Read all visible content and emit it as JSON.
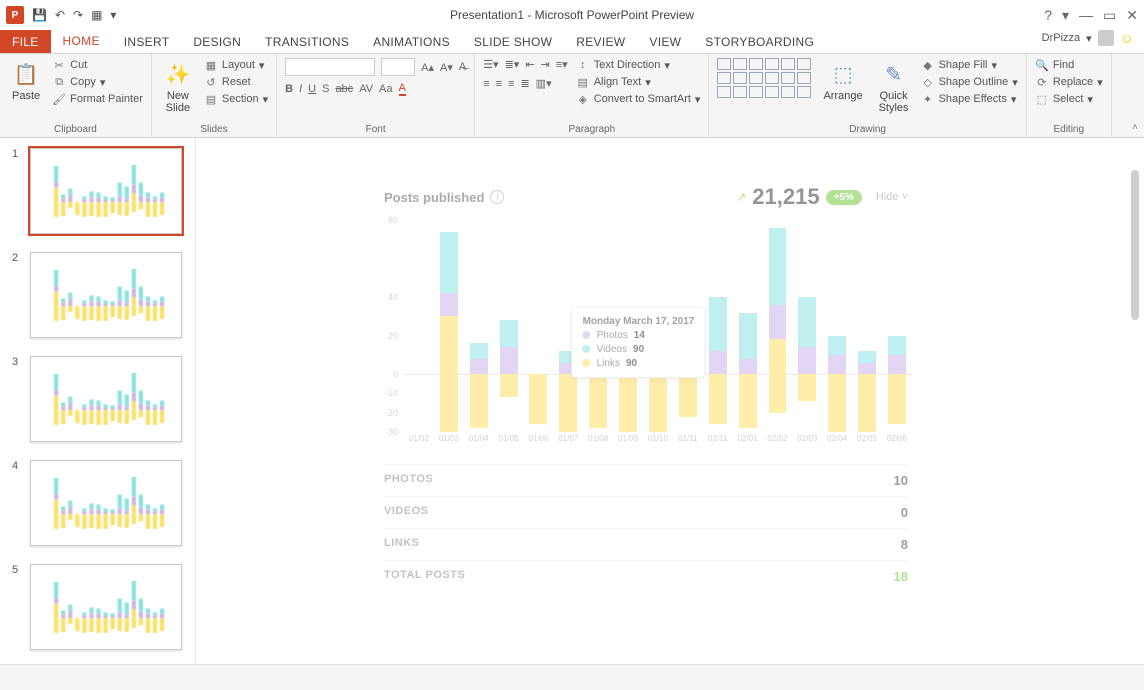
{
  "app": {
    "title": "Presentation1 - Microsoft PowerPoint Preview",
    "logo_text": "P"
  },
  "qat": {
    "items": [
      "💾",
      "↶",
      "↷",
      "▦",
      "▾"
    ]
  },
  "window_controls": {
    "help": "?",
    "min": "—",
    "max": "▭",
    "close": "✕"
  },
  "user": {
    "name": "DrPizza",
    "dropdown": "▾"
  },
  "tabs": {
    "file": "FILE",
    "home": "HOME",
    "insert": "INSERT",
    "design": "DESIGN",
    "transitions": "TRANSITIONS",
    "animations": "ANIMATIONS",
    "slideshow": "SLIDE SHOW",
    "review": "REVIEW",
    "view": "VIEW",
    "storyboarding": "STORYBOARDING"
  },
  "ribbon": {
    "clipboard": {
      "paste": "Paste",
      "cut": "Cut",
      "copy": "Copy",
      "format_painter": "Format Painter",
      "label": "Clipboard"
    },
    "slides": {
      "new_slide": "New\nSlide",
      "layout": "Layout",
      "reset": "Reset",
      "section": "Section",
      "label": "Slides"
    },
    "font": {
      "label": "Font",
      "buttons": [
        "B",
        "I",
        "U",
        "S",
        "abc",
        "AV",
        "Aa",
        "A",
        "A"
      ]
    },
    "paragraph": {
      "text_direction": "Text Direction",
      "align_text": "Align Text",
      "convert": "Convert to SmartArt",
      "label": "Paragraph"
    },
    "drawing": {
      "arrange": "Arrange",
      "quick_styles": "Quick\nStyles",
      "shape_fill": "Shape Fill",
      "shape_outline": "Shape Outline",
      "shape_effects": "Shape Effects",
      "label": "Drawing"
    },
    "editing": {
      "find": "Find",
      "replace": "Replace",
      "select": "Select",
      "label": "Editing"
    }
  },
  "thumbnails": [
    1,
    2,
    3,
    4,
    5
  ],
  "widget": {
    "title": "Posts published",
    "total": "21,215",
    "delta": "+5%",
    "hide": "Hide",
    "y_axis": {
      "min": -30,
      "max": 80,
      "ticks": [
        80,
        40,
        20,
        0,
        -10,
        -20,
        -30
      ]
    },
    "colors": {
      "photos": "#cdb6ec",
      "videos": "#8be3e1",
      "links": "#ffe066",
      "grid": "#d7dbdf",
      "accent": "#7ac943"
    },
    "tooltip": {
      "date": "Monday March 17, 2017",
      "photos_label": "Photos",
      "photos_val": "14",
      "videos_label": "Videos",
      "videos_val": "90",
      "links_label": "Links",
      "links_val": "90"
    },
    "categories": [
      "01/02",
      "01/03",
      "01/04",
      "01/05",
      "01/06",
      "01/07",
      "01/08",
      "01/09",
      "01/10",
      "01/11",
      "02/11",
      "02/01",
      "02/02",
      "02/03",
      "02/04",
      "02/05",
      "02/06"
    ],
    "series": [
      {
        "p": 0,
        "v": 0,
        "l": 0
      },
      {
        "p": 12,
        "v": 32,
        "l": 30,
        "ln": -30
      },
      {
        "p": 8,
        "v": 8,
        "l": 0,
        "ln": -28
      },
      {
        "p": 14,
        "v": 14,
        "l": 0,
        "ln": -12
      },
      {
        "p": 0,
        "v": 0,
        "l": 0,
        "ln": -26
      },
      {
        "p": 6,
        "v": 6,
        "l": 0,
        "ln": -30
      },
      {
        "p": 10,
        "v": 12,
        "l": 0,
        "ln": -28
      },
      {
        "p": 10,
        "v": 10,
        "l": 0,
        "ln": -30
      },
      {
        "p": 6,
        "v": 6,
        "l": 0,
        "ln": -30
      },
      {
        "p": 4,
        "v": 6,
        "l": 0,
        "ln": -22
      },
      {
        "p": 12,
        "v": 28,
        "l": 0,
        "ln": -26
      },
      {
        "p": 8,
        "v": 24,
        "l": 0,
        "ln": -28
      },
      {
        "p": 18,
        "v": 40,
        "l": 18,
        "ln": -20
      },
      {
        "p": 14,
        "v": 26,
        "l": 0,
        "ln": -14
      },
      {
        "p": 10,
        "v": 10,
        "l": 0,
        "ln": -30
      },
      {
        "p": 6,
        "v": 6,
        "l": 0,
        "ln": -30
      },
      {
        "p": 10,
        "v": 10,
        "l": 0,
        "ln": -26
      }
    ],
    "stats": {
      "photos": {
        "k": "PHOTOS",
        "v": "10"
      },
      "videos": {
        "k": "VIDEOS",
        "v": "0"
      },
      "links": {
        "k": "LINKS",
        "v": "8"
      },
      "total": {
        "k": "TOTAL POSTS",
        "v": "18"
      }
    }
  }
}
